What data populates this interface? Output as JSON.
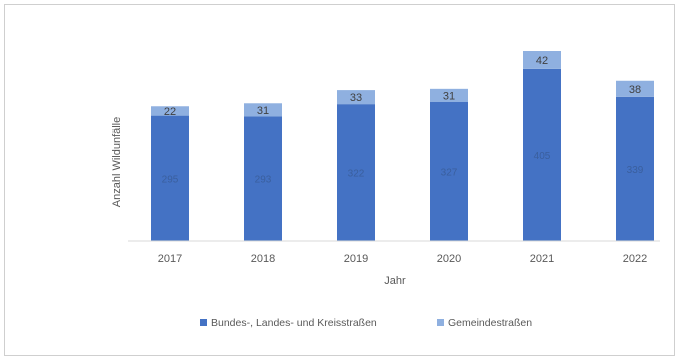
{
  "chart_data": {
    "type": "bar",
    "stacked": true,
    "xlabel": "Jahr",
    "ylabel": "Anzahl Wildunfälle",
    "categories": [
      "2017",
      "2018",
      "2019",
      "2020",
      "2021",
      "2022"
    ],
    "series": [
      {
        "name": "Bundes-, Landes- und Kreisstraßen",
        "color": "#4472c4",
        "values": [
          295,
          293,
          322,
          327,
          405,
          339
        ],
        "value_labels": [
          "295",
          "293",
          "322",
          "327",
          "405",
          "339"
        ]
      },
      {
        "name": "Gemeindestraßen",
        "color": "#8fb0e0",
        "values": [
          22,
          31,
          33,
          31,
          42,
          38
        ],
        "value_labels": [
          "22",
          "31",
          "33",
          "31",
          "42",
          "38"
        ]
      }
    ],
    "ylim": [
      0,
      450
    ],
    "grid": false,
    "legend_position": "bottom"
  }
}
